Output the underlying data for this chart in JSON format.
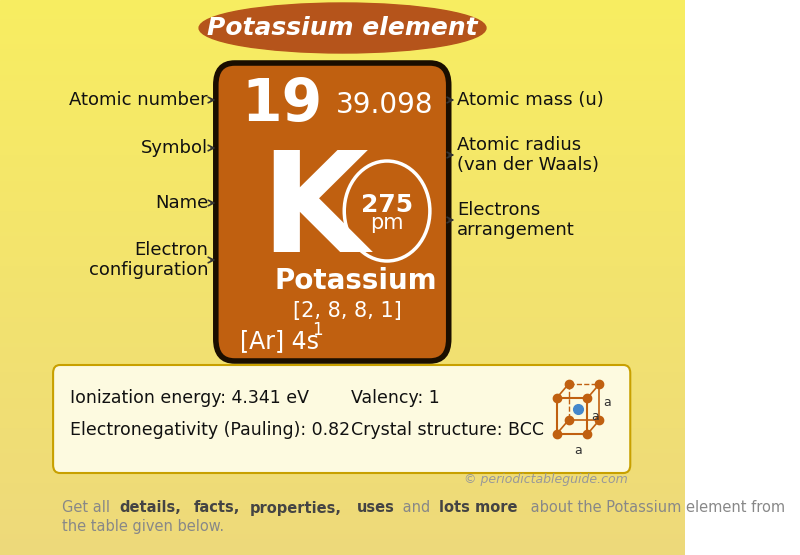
{
  "title": "Potassium element",
  "title_bg_color": "#b5541b",
  "title_text_color": "#ffffff",
  "card_bg": "#c06010",
  "card_border": "#1a0e00",
  "card_text_color": "#ffffff",
  "atomic_number": "19",
  "atomic_mass": "39.098",
  "symbol": "K",
  "name": "Potassium",
  "electron_config": "[Ar] 4s",
  "electron_config_sup": "1",
  "electron_arrangement": "[2, 8, 8, 1]",
  "atomic_radius": "275",
  "atomic_radius_unit": "pm",
  "info_box_border": "#c8a000",
  "info_box_bg": "#fdfae0",
  "ionization_energy": "Ionization energy: 4.341 eV",
  "electronegativity": "Electronegativity (Pauling): 0.82",
  "valency": "Valency: 1",
  "crystal_structure": "Crystal structure: BCC",
  "copyright": "© periodictableguide.com"
}
